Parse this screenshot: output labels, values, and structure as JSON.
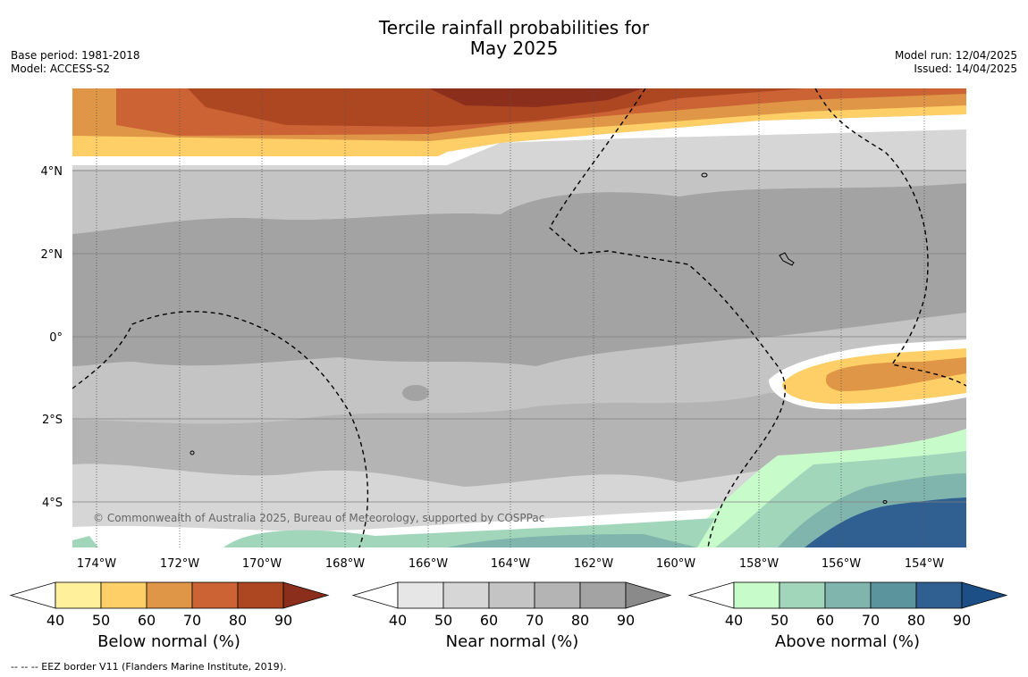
{
  "header": {
    "title_line1": "Tercile rainfall probabilities for",
    "title_line2": "May 2025",
    "base_period": "Base period: 1981-2018",
    "model": "Model: ACCESS-S2",
    "model_run": "Model run: 12/04/2025",
    "issued": "Issued: 14/04/2025"
  },
  "map": {
    "lat_labels": [
      "4°N",
      "2°N",
      "0°",
      "2°S",
      "4°S"
    ],
    "lon_labels": [
      "174°W",
      "172°W",
      "170°W",
      "168°W",
      "166°W",
      "164°W",
      "162°W",
      "160°W",
      "158°W",
      "156°W",
      "154°W"
    ],
    "copyright": "© Commonwealth of Australia 2025, Bureau of Meteorology, supported by COSPPac"
  },
  "colorbars": [
    {
      "label": "Below normal (%)",
      "ticks": [
        "40",
        "50",
        "60",
        "70",
        "80",
        "90"
      ],
      "colors": [
        "#fff09c",
        "#fecf67",
        "#e09647",
        "#cb6334",
        "#ad4722",
        "#8c2e1c"
      ]
    },
    {
      "label": "Near normal (%)",
      "ticks": [
        "40",
        "50",
        "60",
        "70",
        "80",
        "90"
      ],
      "colors": [
        "#e6e6e6",
        "#d6d6d6",
        "#c4c4c4",
        "#b4b4b4",
        "#a3a3a3",
        "#8a8a8a"
      ]
    },
    {
      "label": "Above normal (%)",
      "ticks": [
        "40",
        "50",
        "60",
        "70",
        "80",
        "90"
      ],
      "colors": [
        "#c8fbca",
        "#a2d6bb",
        "#7fb5ad",
        "#5c949e",
        "#305f91",
        "#1b4f85"
      ]
    }
  ],
  "footnote": "--  --  -- EEZ border V11 (Flanders Marine Institute, 2019)."
}
